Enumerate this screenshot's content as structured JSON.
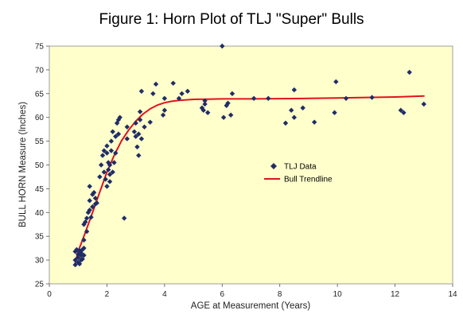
{
  "chart_data": {
    "type": "scatter",
    "title": "Figure 1: Horn Plot of TLJ \"Super\" Bulls",
    "xlabel": "AGE at Measurement (Years)",
    "ylabel": "BULL HORN Measure (Inches)",
    "xlim": [
      0,
      14
    ],
    "ylim": [
      25,
      75
    ],
    "xticks": [
      0,
      2,
      4,
      6,
      8,
      10,
      12,
      14
    ],
    "yticks": [
      25,
      30,
      35,
      40,
      45,
      50,
      55,
      60,
      65,
      70,
      75
    ],
    "plot_background": "#ffffcc",
    "grid": false,
    "legend_position": "right",
    "series": [
      {
        "name": "TLJ Data",
        "marker": "diamond",
        "color": "#1f2d66",
        "points": [
          [
            0.9,
            29.0
          ],
          [
            0.9,
            30.0
          ],
          [
            0.9,
            31.8
          ],
          [
            0.95,
            32.2
          ],
          [
            1.0,
            29.5
          ],
          [
            1.0,
            30.5
          ],
          [
            1.0,
            31.2
          ],
          [
            1.05,
            29.2
          ],
          [
            1.05,
            32.0
          ],
          [
            1.1,
            30.0
          ],
          [
            1.1,
            31.0
          ],
          [
            1.1,
            31.5
          ],
          [
            1.15,
            30.2
          ],
          [
            1.15,
            32.2
          ],
          [
            1.2,
            31.0
          ],
          [
            1.2,
            32.5
          ],
          [
            1.2,
            34.2
          ],
          [
            1.2,
            37.5
          ],
          [
            1.25,
            38.0
          ],
          [
            1.3,
            36.0
          ],
          [
            1.3,
            38.8
          ],
          [
            1.35,
            40.0
          ],
          [
            1.4,
            40.5
          ],
          [
            1.4,
            42.5
          ],
          [
            1.4,
            45.5
          ],
          [
            1.45,
            39.0
          ],
          [
            1.5,
            41.2
          ],
          [
            1.5,
            43.8
          ],
          [
            1.55,
            44.2
          ],
          [
            1.6,
            41.8
          ],
          [
            1.6,
            43.0
          ],
          [
            1.65,
            42.0
          ],
          [
            1.75,
            47.5
          ],
          [
            1.8,
            50.0
          ],
          [
            1.85,
            52.0
          ],
          [
            1.9,
            53.0
          ],
          [
            1.9,
            48.5
          ],
          [
            1.95,
            47.0
          ],
          [
            2.0,
            45.5
          ],
          [
            2.0,
            52.5
          ],
          [
            2.0,
            54.0
          ],
          [
            2.05,
            49.0
          ],
          [
            2.05,
            50.5
          ],
          [
            2.1,
            46.5
          ],
          [
            2.1,
            48.0
          ],
          [
            2.1,
            50.0
          ],
          [
            2.15,
            53.0
          ],
          [
            2.15,
            55.0
          ],
          [
            2.2,
            48.5
          ],
          [
            2.2,
            57.0
          ],
          [
            2.25,
            50.5
          ],
          [
            2.3,
            52.5
          ],
          [
            2.3,
            56.0
          ],
          [
            2.35,
            58.8
          ],
          [
            2.4,
            56.5
          ],
          [
            2.4,
            59.5
          ],
          [
            2.45,
            60.0
          ],
          [
            2.6,
            38.8
          ],
          [
            2.7,
            55.5
          ],
          [
            2.7,
            58.0
          ],
          [
            2.95,
            57.0
          ],
          [
            3.0,
            56.0
          ],
          [
            3.0,
            58.8
          ],
          [
            3.05,
            53.8
          ],
          [
            3.1,
            52.0
          ],
          [
            3.1,
            56.5
          ],
          [
            3.15,
            59.5
          ],
          [
            3.15,
            61.2
          ],
          [
            3.2,
            65.5
          ],
          [
            3.2,
            55.5
          ],
          [
            3.3,
            58.0
          ],
          [
            3.5,
            59.0
          ],
          [
            3.6,
            65.0
          ],
          [
            3.7,
            67.0
          ],
          [
            3.95,
            60.5
          ],
          [
            4.0,
            61.5
          ],
          [
            4.0,
            64.0
          ],
          [
            4.3,
            67.2
          ],
          [
            4.5,
            64.0
          ],
          [
            4.6,
            65.0
          ],
          [
            4.8,
            65.5
          ],
          [
            5.3,
            62.0
          ],
          [
            5.35,
            61.5
          ],
          [
            5.4,
            62.8
          ],
          [
            5.4,
            63.5
          ],
          [
            5.5,
            61.0
          ],
          [
            6.0,
            75.0
          ],
          [
            6.05,
            60.0
          ],
          [
            6.15,
            62.5
          ],
          [
            6.2,
            63.0
          ],
          [
            6.3,
            60.5
          ],
          [
            6.35,
            65.0
          ],
          [
            7.1,
            64.0
          ],
          [
            7.6,
            64.0
          ],
          [
            8.2,
            58.8
          ],
          [
            8.4,
            61.5
          ],
          [
            8.5,
            60.0
          ],
          [
            8.5,
            65.8
          ],
          [
            8.8,
            62.0
          ],
          [
            9.2,
            59.0
          ],
          [
            9.9,
            61.0
          ],
          [
            9.95,
            67.5
          ],
          [
            10.3,
            64.0
          ],
          [
            11.2,
            64.2
          ],
          [
            12.2,
            61.5
          ],
          [
            12.3,
            61.0
          ],
          [
            12.5,
            69.5
          ],
          [
            13.0,
            62.8
          ]
        ]
      },
      {
        "name": "Bull Trendline",
        "type": "line",
        "color": "#e2121d",
        "points": [
          [
            0.9,
            29.5
          ],
          [
            1.0,
            31.8
          ],
          [
            1.25,
            35.8
          ],
          [
            1.5,
            40.0
          ],
          [
            1.75,
            44.3
          ],
          [
            2.0,
            48.5
          ],
          [
            2.25,
            52.0
          ],
          [
            2.5,
            55.0
          ],
          [
            2.75,
            57.3
          ],
          [
            3.0,
            59.2
          ],
          [
            3.25,
            60.7
          ],
          [
            3.5,
            61.8
          ],
          [
            3.75,
            62.6
          ],
          [
            4.0,
            63.1
          ],
          [
            4.25,
            63.4
          ],
          [
            4.5,
            63.6
          ],
          [
            5.0,
            63.8
          ],
          [
            5.5,
            63.85
          ],
          [
            6.0,
            63.9
          ],
          [
            7.0,
            63.9
          ],
          [
            8.0,
            63.95
          ],
          [
            9.0,
            64.0
          ],
          [
            10.0,
            64.1
          ],
          [
            11.0,
            64.2
          ],
          [
            12.0,
            64.3
          ],
          [
            13.0,
            64.5
          ]
        ]
      }
    ]
  }
}
